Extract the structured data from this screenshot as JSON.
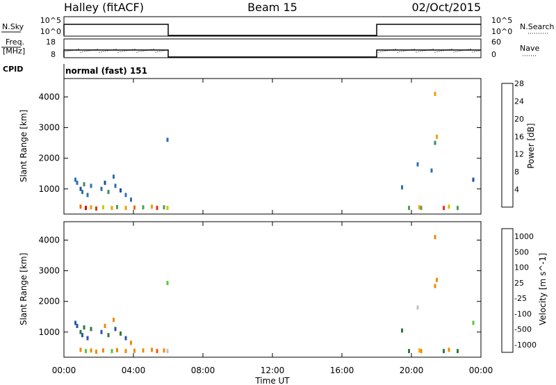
{
  "header": {
    "station": "Halley (fitACF)",
    "beam": "Beam 15",
    "date": "02/Oct/2015"
  },
  "labels": {
    "nsky": "N.Sky",
    "nsearch": "N.Search",
    "freq_line1": "Freq.",
    "freq_line2": "[MHz]",
    "nave": "Nave",
    "cpid": "CPID",
    "cpid_value": "normal (fast) 151",
    "nsky_tick_hi": "10^5",
    "nsky_tick_lo": "10^0",
    "nsearch_tick_hi": "10^5",
    "nsearch_tick_lo": "10^0",
    "freq_tick_hi": "18",
    "freq_tick_lo": "8",
    "nave_tick_hi": "60",
    "nave_tick_lo": "0"
  },
  "colors": {
    "power_scale": [
      "#0a00e8",
      "#1e4fa0",
      "#2f6fb0",
      "#3d8a6a",
      "#4aa05a",
      "#c8c800",
      "#f0a000",
      "#f06a00",
      "#e83010",
      "#d80000"
    ],
    "velocity_scale": [
      "#1a1ad0",
      "#2b56a8",
      "#2f7a3a",
      "#56c83a",
      "#c0c0c0",
      "#f0b000",
      "#f08a00",
      "#f05a00",
      "#e82800"
    ]
  },
  "chart_data": [
    {
      "type": "line",
      "panel": "N.Sky / N.Search",
      "ylabel": "N.Sky",
      "ylabel_right": "N.Search",
      "x_unit": "hours UT",
      "x": [
        0,
        0.001,
        6.0,
        6.001,
        18.0,
        18.001,
        24.0
      ],
      "series": [
        {
          "values": [
            1,
            100000,
            100000,
            1,
            1,
            100000,
            100000
          ]
        }
      ]
    },
    {
      "type": "line",
      "panel": "Freq. [MHz] / Nave",
      "ylabel": "Freq. [MHz]",
      "ylabel_right": "Nave",
      "x_unit": "hours UT",
      "ylim": [
        8,
        18
      ],
      "x": [
        0,
        0.001,
        6.0,
        6.001,
        18.0,
        18.001,
        24.0
      ],
      "series": [
        {
          "values": [
            8,
            12,
            12,
            8,
            8,
            12,
            12
          ]
        }
      ]
    },
    {
      "type": "heatmap",
      "panel": "Power",
      "xlabel": "",
      "ylabel": "Slant Range [km]",
      "colorbar_label": "Power [dB]",
      "colorbar_ticks": [
        "4",
        "8",
        "12",
        "16",
        "20",
        "24",
        "28"
      ],
      "x_unit": "hours UT",
      "ylim": [
        180,
        4600
      ],
      "yticks": [
        "1000",
        "2000",
        "3000",
        "4000"
      ],
      "points": [
        [
          0.6,
          1300,
          8
        ],
        [
          0.7,
          1200,
          6
        ],
        [
          0.9,
          1000,
          4
        ],
        [
          1.0,
          900,
          6
        ],
        [
          1.1,
          1150,
          10
        ],
        [
          1.3,
          800,
          8
        ],
        [
          1.5,
          1100,
          6
        ],
        [
          2.1,
          1000,
          8
        ],
        [
          2.3,
          1200,
          4
        ],
        [
          2.5,
          900,
          10
        ],
        [
          2.8,
          1400,
          6
        ],
        [
          2.9,
          1100,
          8
        ],
        [
          3.2,
          950,
          4
        ],
        [
          3.5,
          800,
          8
        ],
        [
          3.8,
          650,
          6
        ],
        [
          0.9,
          420,
          22
        ],
        [
          1.2,
          380,
          28
        ],
        [
          1.5,
          400,
          20
        ],
        [
          1.8,
          360,
          26
        ],
        [
          2.2,
          400,
          16
        ],
        [
          2.7,
          380,
          18
        ],
        [
          3.0,
          410,
          12
        ],
        [
          3.5,
          380,
          20
        ],
        [
          4.0,
          390,
          22
        ],
        [
          4.5,
          400,
          14
        ],
        [
          5.0,
          420,
          18
        ],
        [
          5.3,
          380,
          24
        ],
        [
          5.7,
          400,
          12
        ],
        [
          5.9,
          380,
          16
        ],
        [
          5.9,
          2600,
          6
        ],
        [
          19.4,
          1050,
          8
        ],
        [
          20.3,
          1800,
          6
        ],
        [
          20.5,
          380,
          12
        ],
        [
          21.1,
          1600,
          6
        ],
        [
          21.3,
          4100,
          20
        ],
        [
          21.4,
          2700,
          18
        ],
        [
          21.3,
          2500,
          10
        ],
        [
          19.8,
          380,
          14
        ],
        [
          20.4,
          400,
          18
        ],
        [
          21.8,
          380,
          24
        ],
        [
          22.1,
          420,
          16
        ],
        [
          22.6,
          380,
          12
        ],
        [
          23.5,
          1300,
          4
        ]
      ]
    },
    {
      "type": "heatmap",
      "panel": "Velocity",
      "xlabel": "Time UT",
      "ylabel": "Slant Range [km]",
      "colorbar_label": "Velocity [m s^-1]",
      "colorbar_ticks": [
        "1000",
        "500",
        "100",
        "25",
        "-25",
        "-100",
        "-500",
        "-1000"
      ],
      "x_unit": "hours UT",
      "xticks": [
        "00:00",
        "04:00",
        "08:00",
        "12:00",
        "16:00",
        "20:00",
        "00:00"
      ],
      "ylim": [
        180,
        4600
      ],
      "yticks": [
        "1000",
        "2000",
        "3000",
        "4000"
      ],
      "points": [
        [
          0.6,
          1300,
          600
        ],
        [
          0.7,
          1200,
          800
        ],
        [
          0.9,
          1000,
          400
        ],
        [
          1.0,
          900,
          600
        ],
        [
          1.1,
          1150,
          300
        ],
        [
          1.3,
          800,
          700
        ],
        [
          1.5,
          1100,
          500
        ],
        [
          2.1,
          1000,
          800
        ],
        [
          2.3,
          1200,
          -200
        ],
        [
          2.5,
          900,
          400
        ],
        [
          2.8,
          1400,
          -300
        ],
        [
          2.9,
          1100,
          600
        ],
        [
          3.2,
          950,
          150
        ],
        [
          3.5,
          800,
          700
        ],
        [
          3.8,
          650,
          -150
        ],
        [
          0.9,
          420,
          -400
        ],
        [
          1.2,
          380,
          80
        ],
        [
          1.5,
          400,
          -150
        ],
        [
          1.8,
          360,
          -300
        ],
        [
          2.2,
          400,
          -200
        ],
        [
          2.7,
          380,
          50
        ],
        [
          3.0,
          410,
          -250
        ],
        [
          3.5,
          380,
          -400
        ],
        [
          4.0,
          390,
          -300
        ],
        [
          4.5,
          400,
          -150
        ],
        [
          5.0,
          420,
          -250
        ],
        [
          5.3,
          380,
          -600
        ],
        [
          5.7,
          400,
          -200
        ],
        [
          5.9,
          380,
          20
        ],
        [
          5.9,
          2600,
          30
        ],
        [
          19.4,
          1050,
          120
        ],
        [
          20.3,
          1800,
          20
        ],
        [
          20.5,
          380,
          -120
        ],
        [
          21.3,
          4100,
          -200
        ],
        [
          21.4,
          2700,
          -300
        ],
        [
          21.3,
          2500,
          -120
        ],
        [
          19.8,
          380,
          150
        ],
        [
          20.4,
          400,
          -80
        ],
        [
          21.8,
          380,
          120
        ],
        [
          22.1,
          420,
          -100
        ],
        [
          22.6,
          380,
          150
        ],
        [
          23.5,
          1300,
          30
        ]
      ]
    }
  ]
}
